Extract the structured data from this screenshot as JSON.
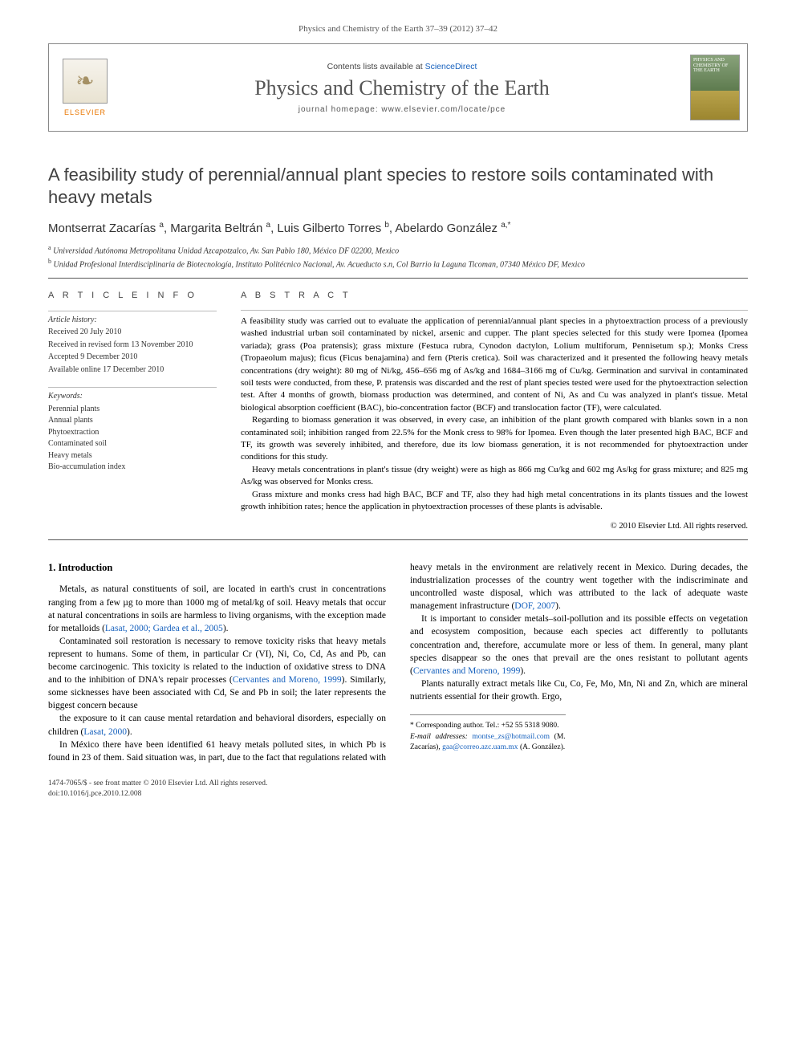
{
  "journal_reference": "Physics and Chemistry of the Earth 37–39 (2012) 37–42",
  "masthead": {
    "publisher": "ELSEVIER",
    "contents_prefix": "Contents lists available at ",
    "contents_link": "ScienceDirect",
    "journal_name": "Physics and Chemistry of the Earth",
    "homepage_prefix": "journal homepage: ",
    "homepage_url": "www.elsevier.com/locate/pce",
    "cover_text": "PHYSICS AND CHEMISTRY OF THE EARTH"
  },
  "title": "A feasibility study of perennial/annual plant species to restore soils contaminated with heavy metals",
  "authors_html": "Montserrat Zacarías <sup>a</sup>, Margarita Beltrán <sup>a</sup>, Luis Gilberto Torres <sup>b</sup>, Abelardo González <sup>a,*</sup>",
  "affiliations": [
    {
      "mark": "a",
      "text": "Universidad Autónoma Metropolitana Unidad Azcapotzalco, Av. San Pablo 180, México DF 02200, Mexico"
    },
    {
      "mark": "b",
      "text": "Unidad Profesional Interdisciplinaria de Biotecnología, Instituto Politécnico Nacional, Av. Acueducto s.n, Col Barrio la Laguna Ticoman, 07340 México DF, Mexico"
    }
  ],
  "article_info": {
    "heading": "A R T I C L E   I N F O",
    "history_label": "Article history:",
    "history": [
      "Received 20 July 2010",
      "Received in revised form 13 November 2010",
      "Accepted 9 December 2010",
      "Available online 17 December 2010"
    ],
    "keywords_label": "Keywords:",
    "keywords": [
      "Perennial plants",
      "Annual plants",
      "Phytoextraction",
      "Contaminated soil",
      "Heavy metals",
      "Bio-accumulation index"
    ]
  },
  "abstract": {
    "heading": "A B S T R A C T",
    "paragraphs": [
      "A feasibility study was carried out to evaluate the application of perennial/annual plant species in a phytoextraction process of a previously washed industrial urban soil contaminated by nickel, arsenic and cupper. The plant species selected for this study were Ipomea (Ipomea variada); grass (Poa pratensis); grass mixture (Festuca rubra, Cynodon dactylon, Lolium multiforum, Pennisetum sp.); Monks Cress (Tropaeolum majus); ficus (Ficus benajamina) and fern (Pteris cretica). Soil was characterized and it presented the following heavy metals concentrations (dry weight): 80 mg of Ni/kg, 456–656 mg of As/kg and 1684–3166 mg of Cu/kg. Germination and survival in contaminated soil tests were conducted, from these, P. pratensis was discarded and the rest of plant species tested were used for the phytoextraction selection test. After 4 months of growth, biomass production was determined, and content of Ni, As and Cu was analyzed in plant's tissue. Metal biological absorption coefficient (BAC), bio-concentration factor (BCF) and translocation factor (TF), were calculated.",
      "Regarding to biomass generation it was observed, in every case, an inhibition of the plant growth compared with blanks sown in a non contaminated soil; inhibition ranged from 22.5% for the Monk cress to 98% for Ipomea. Even though the later presented high BAC, BCF and TF, its growth was severely inhibited, and therefore, due its low biomass generation, it is not recommended for phytoextraction under conditions for this study.",
      "Heavy metals concentrations in plant's tissue (dry weight) were as high as 866 mg Cu/kg and 602 mg As/kg for grass mixture; and 825 mg As/kg was observed for Monks cress.",
      "Grass mixture and monks cress had high BAC, BCF and TF, also they had high metal concentrations in its plants tissues and the lowest growth inhibition rates; hence the application in phytoextraction processes of these plants is advisable."
    ],
    "copyright": "© 2010 Elsevier Ltd. All rights reserved."
  },
  "section_heading": "1. Introduction",
  "body_paragraphs": [
    "Metals, as natural constituents of soil, are located in earth's crust in concentrations ranging from a few µg to more than 1000 mg of metal/kg of soil. Heavy metals that occur at natural concentrations in soils are harmless to living organisms, with the exception made for metalloids (<a class='ref' data-name='citation-link' data-interactable='true'>Lasat, 2000; Gardea et al., 2005</a>).",
    "Contaminated soil restoration is necessary to remove toxicity risks that heavy metals represent to humans. Some of them, in particular Cr (VI), Ni, Co, Cd, As and Pb, can become carcinogenic. This toxicity is related to the induction of oxidative stress to DNA and to the inhibition of DNA's repair processes (<a class='ref' data-name='citation-link' data-interactable='true'>Cervantes and Moreno, 1999</a>). Similarly, some sicknesses have been associated with Cd, Se and Pb in soil; the later represents the biggest concern because",
    "the exposure to it can cause mental retardation and behavioral disorders, especially on children (<a class='ref' data-name='citation-link' data-interactable='true'>Lasat, 2000</a>).",
    "In México there have been identified 61 heavy metals polluted sites, in which Pb is found in 23 of them. Said situation was, in part, due to the fact that regulations related with heavy metals in the environment are relatively recent in Mexico. During decades, the industrialization processes of the country went together with the indiscriminate and uncontrolled waste disposal, which was attributed to the lack of adequate waste management infrastructure (<a class='ref' data-name='citation-link' data-interactable='true'>DOF, 2007</a>).",
    "It is important to consider metals–soil-pollution and its possible effects on vegetation and ecosystem composition, because each species act differently to pollutants concentration and, therefore, accumulate more or less of them. In general, many plant species disappear so the ones that prevail are the ones resistant to pollutant agents (<a class='ref' data-name='citation-link' data-interactable='true'>Cervantes and Moreno, 1999</a>).",
    "Plants naturally extract metals like Cu, Co, Fe, Mo, Mn, Ni and Zn, which are mineral nutrients essential for their growth. Ergo,"
  ],
  "footnotes": {
    "corr_label": "* Corresponding author. Tel.: +52 55 5318 9080.",
    "email_label": "E-mail addresses: ",
    "emails": [
      {
        "addr": "montse_zs@hotmail.com",
        "who": "(M. Zacarías)"
      },
      {
        "addr": "gaa@correo.azc.uam.mx",
        "who": "(A. González)."
      }
    ]
  },
  "footer": {
    "issn_line": "1474-7065/$ - see front matter © 2010 Elsevier Ltd. All rights reserved.",
    "doi_line": "doi:10.1016/j.pce.2010.12.008"
  }
}
